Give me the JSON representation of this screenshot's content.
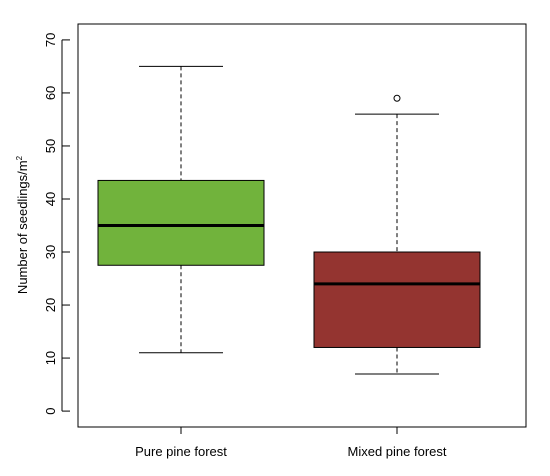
{
  "chart_data": {
    "type": "boxplot",
    "ylabel_main": "Number of seedlings/m",
    "ylabel_superscript": "2",
    "ylim": [
      -3,
      73
    ],
    "yticks": [
      0,
      10,
      20,
      30,
      40,
      50,
      60,
      70
    ],
    "grid": false,
    "categories": [
      "Pure  pine  forest",
      "Mixed  pine  forest"
    ],
    "boxes": [
      {
        "label": "Pure  pine  forest",
        "color": "#71b33c",
        "whisker_low": 11,
        "q1": 27.5,
        "median": 35,
        "q3": 43.5,
        "whisker_high": 65,
        "outliers": []
      },
      {
        "label": "Mixed  pine  forest",
        "color": "#943430",
        "whisker_low": 7,
        "q1": 12,
        "median": 24,
        "q3": 30,
        "whisker_high": 56,
        "outliers": [
          59
        ]
      }
    ]
  }
}
